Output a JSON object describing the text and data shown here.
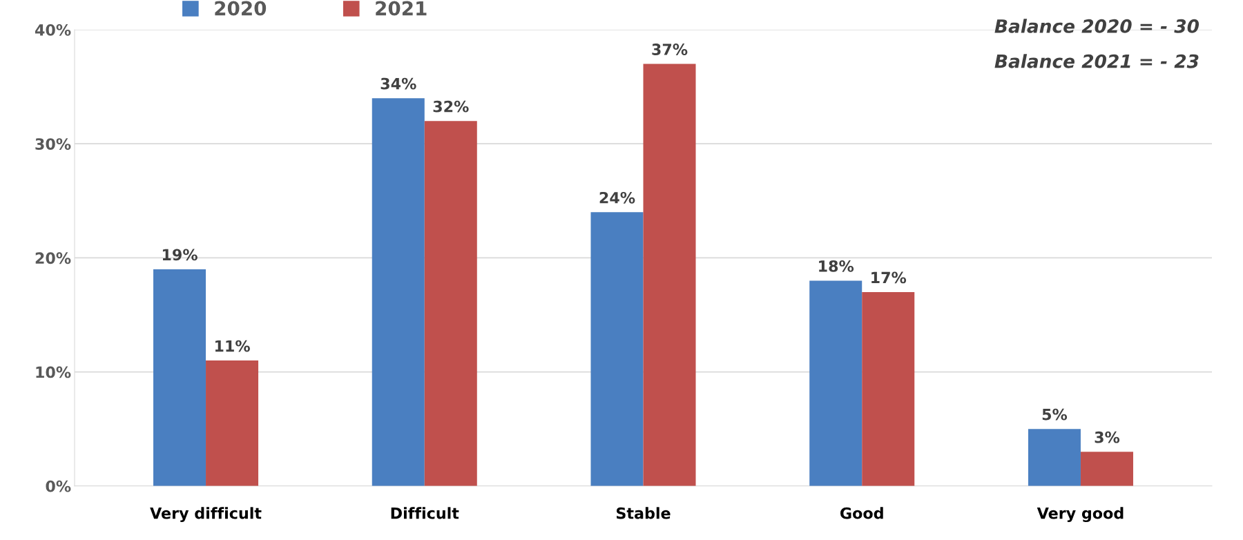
{
  "chart_data": {
    "type": "bar",
    "categories": [
      "Very difficult",
      "Difficult",
      "Stable",
      "Good",
      "Very good"
    ],
    "series": [
      {
        "name": "2020",
        "color": "#4a7fc1",
        "values": [
          19,
          34,
          24,
          18,
          5
        ],
        "value_labels": [
          "19%",
          "34%",
          "24%",
          "18%",
          "5%"
        ]
      },
      {
        "name": "2021",
        "color": "#c0504d",
        "values": [
          11,
          32,
          37,
          17,
          3
        ],
        "value_labels": [
          "11%",
          "32%",
          "37%",
          "17%",
          "3%"
        ]
      }
    ],
    "ylim": [
      0,
      40
    ],
    "yticks": [
      {
        "value": 0,
        "label": "0%"
      },
      {
        "value": 10,
        "label": "10%"
      },
      {
        "value": 20,
        "label": "20%"
      },
      {
        "value": 30,
        "label": "30%"
      },
      {
        "value": 40,
        "label": "40%"
      }
    ],
    "grid": "y",
    "legend": "top left",
    "annotations": [
      "Balance 2020 = - 30",
      "Balance 2021 = - 23"
    ]
  }
}
